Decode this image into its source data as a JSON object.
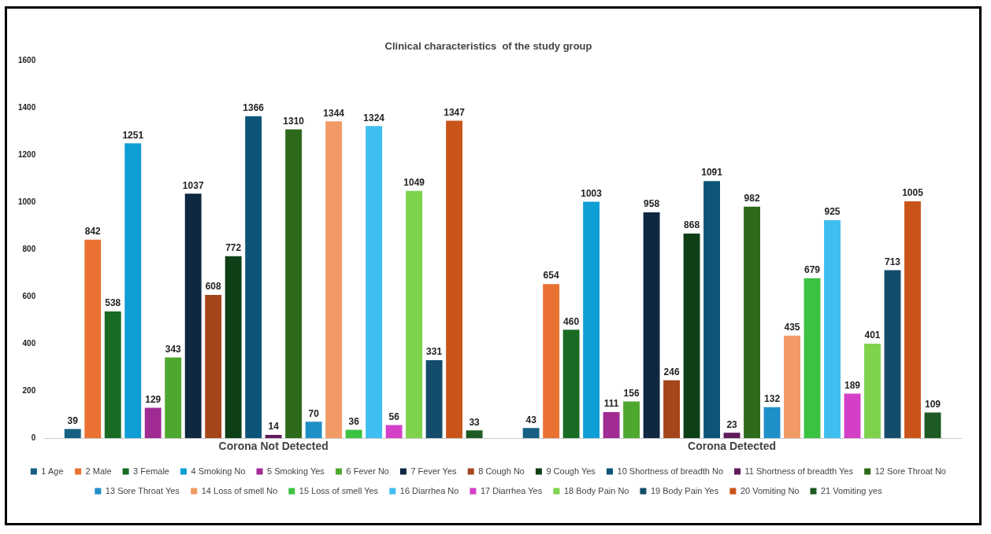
{
  "chart_data": {
    "type": "bar",
    "title": "Clinical characteristics  of the study group",
    "categories": [
      "Corona Not Detected",
      "Corona Detected"
    ],
    "ylim": [
      0,
      1600
    ],
    "yticks": [
      0,
      200,
      400,
      600,
      800,
      1000,
      1200,
      1400,
      1600
    ],
    "grid": false,
    "legend": "bottom",
    "data_labels": true,
    "series": [
      {
        "name": "1 Age",
        "color": "#156082",
        "values": [
          39,
          43
        ]
      },
      {
        "name": "2 Male",
        "color": "#e97132",
        "values": [
          842,
          654
        ]
      },
      {
        "name": "3 Female",
        "color": "#196b24",
        "values": [
          538,
          460
        ]
      },
      {
        "name": "4 Smoking No",
        "color": "#0f9ed5",
        "values": [
          1251,
          1003
        ]
      },
      {
        "name": "5 Smoking Yes",
        "color": "#a02b93",
        "values": [
          129,
          111
        ]
      },
      {
        "name": "6 Fever No",
        "color": "#4ea72e",
        "values": [
          343,
          156
        ]
      },
      {
        "name": "7 Fever Yes",
        "color": "#0e2841",
        "values": [
          1037,
          958
        ]
      },
      {
        "name": "8 Cough No",
        "color": "#a5451a",
        "values": [
          608,
          246
        ]
      },
      {
        "name": "9 Cough Yes",
        "color": "#0f3f17",
        "values": [
          772,
          868
        ]
      },
      {
        "name": "10 Shortness of breadth No",
        "color": "#0d5478",
        "values": [
          1366,
          1091
        ]
      },
      {
        "name": "11 Shortness of breadth Yes",
        "color": "#601a5a",
        "values": [
          14,
          23
        ]
      },
      {
        "name": "12 Sore Throat No",
        "color": "#2d6a1b",
        "values": [
          1310,
          982
        ]
      },
      {
        "name": "13 Sore Throat Yes",
        "color": "#1f8fc8",
        "values": [
          70,
          132
        ]
      },
      {
        "name": "14 Loss of smell No",
        "color": "#f19a65",
        "values": [
          1344,
          435
        ]
      },
      {
        "name": "15 Loss of smell Yes",
        "color": "#3cc241",
        "values": [
          36,
          679
        ]
      },
      {
        "name": "16 Diarrhea No",
        "color": "#3fbef0",
        "values": [
          1324,
          925
        ]
      },
      {
        "name": "17 Diarrhea Yes",
        "color": "#d43fc8",
        "values": [
          56,
          189
        ]
      },
      {
        "name": "18 Body Pain No",
        "color": "#7ed24c",
        "values": [
          1049,
          401
        ]
      },
      {
        "name": "19 Body Pain Yes",
        "color": "#134d6b",
        "values": [
          331,
          713
        ]
      },
      {
        "name": "20 Vomiting No",
        "color": "#c9541a",
        "values": [
          1347,
          1005
        ]
      },
      {
        "name": "21 Vomiting yes",
        "color": "#1d5b22",
        "values": [
          33,
          109
        ]
      }
    ]
  }
}
